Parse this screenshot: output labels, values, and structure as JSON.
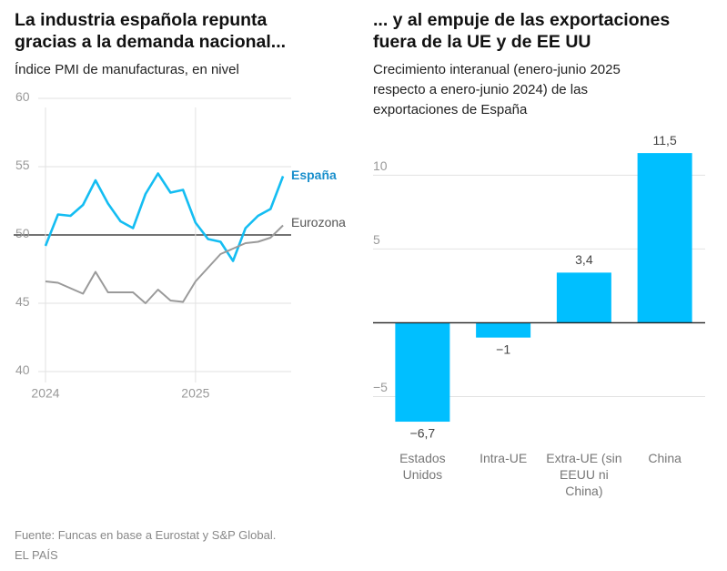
{
  "chart_data": [
    {
      "type": "line",
      "title": "La industria española repunta gracias a la demanda nacional...",
      "subtitle": "Índice PMI de manufacturas, en nivel",
      "categories": [
        "2024",
        null,
        null,
        null,
        null,
        null,
        null,
        null,
        null,
        null,
        null,
        null,
        "2025",
        null,
        null,
        null,
        null,
        null,
        null,
        null
      ],
      "series": [
        {
          "name": "España",
          "color": "#14bdf2",
          "values": [
            49.2,
            51.5,
            51.4,
            52.2,
            54.0,
            52.3,
            51.0,
            50.5,
            53.0,
            54.5,
            53.1,
            53.3,
            50.9,
            49.7,
            49.5,
            48.1,
            50.5,
            51.4,
            51.9,
            54.3
          ]
        },
        {
          "name": "Eurozona",
          "color": "#9a9a9a",
          "values": [
            46.6,
            46.5,
            46.1,
            45.7,
            47.3,
            45.8,
            45.8,
            45.8,
            45.0,
            46.0,
            45.2,
            45.1,
            46.6,
            47.6,
            48.6,
            49.0,
            49.4,
            49.5,
            49.8,
            50.7
          ]
        }
      ],
      "ylim": [
        39.2,
        60.8
      ],
      "yticks": [
        40,
        45,
        50,
        55,
        60
      ],
      "reference_line": 50,
      "grid": true
    },
    {
      "type": "bar",
      "title": "... y al empuje de las exportaciones fuera de la UE y de EE UU",
      "subtitle": "Crecimiento interanual (enero-junio 2025 respecto a enero-junio 2024) de las exportaciones de España",
      "categories": [
        "Estados Unidos",
        "Intra-UE",
        "Extra-UE (sin EEUU ni China)",
        "China"
      ],
      "values": [
        -6.7,
        -1,
        3.4,
        11.5
      ],
      "value_labels": [
        "−6,7",
        "−1",
        "3,4",
        "11,5"
      ],
      "color": "#00bfff",
      "ylim": [
        -7.5,
        12
      ],
      "yticks": [
        {
          "value": -5,
          "label": "−5"
        },
        5,
        10
      ],
      "grid": true
    }
  ],
  "source": "Fuente: Funcas en base a Eurostat y S&P Global.",
  "publisher": "EL PAÍS"
}
